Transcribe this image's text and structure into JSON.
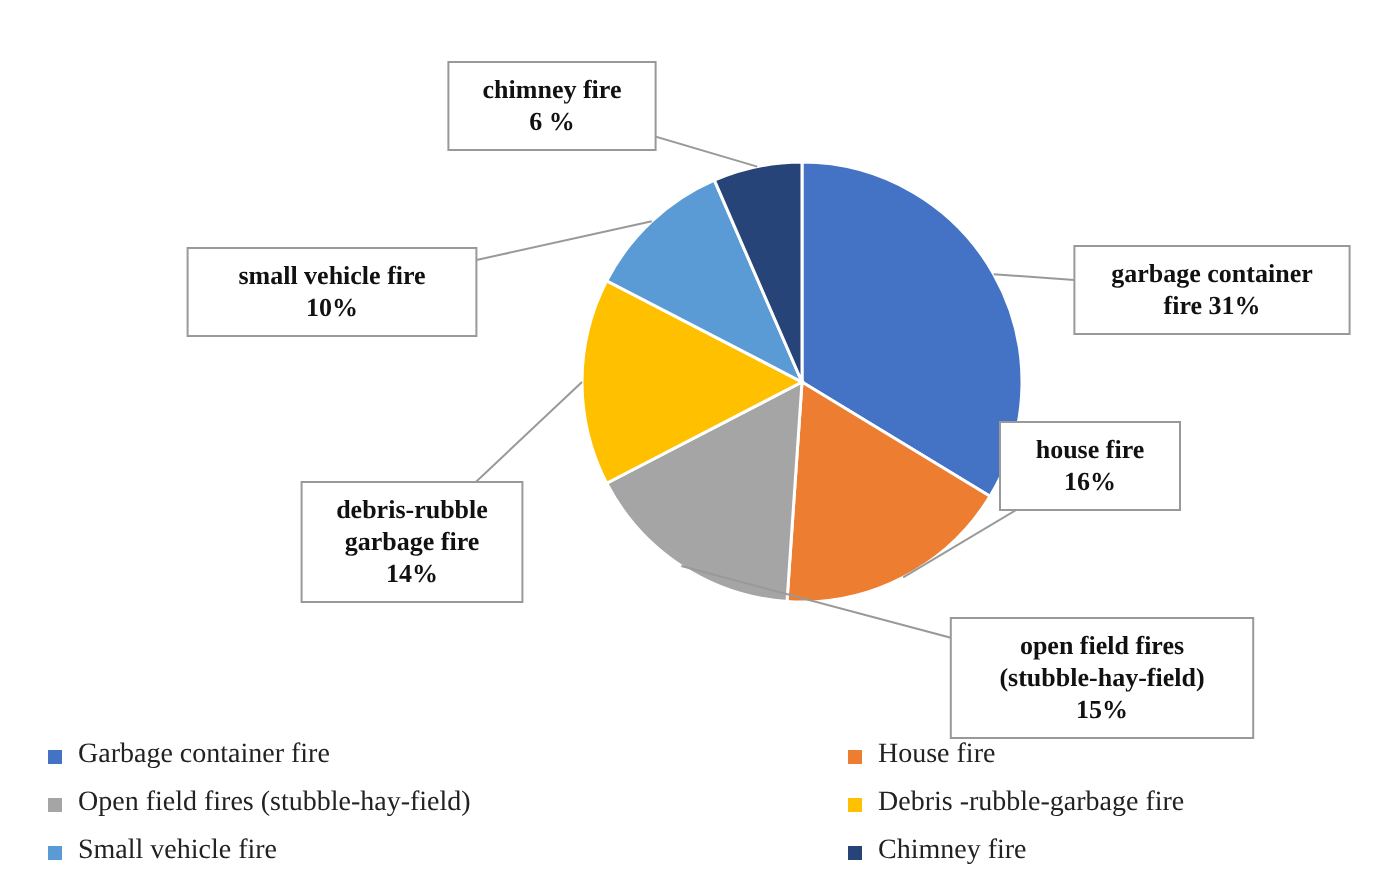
{
  "chart_data": {
    "type": "pie",
    "categories": [
      "Garbage container fire",
      "House fire",
      "Open field fires (stubble-hay-field)",
      "Debris -rubble-garbage fire",
      "Small vehicle fire",
      "Chimney fire"
    ],
    "values": [
      31,
      16,
      15,
      14,
      10,
      6
    ],
    "colors": [
      "#4472c4",
      "#ed7d31",
      "#a5a5a5",
      "#ffc000",
      "#5b9bd5",
      "#264478"
    ],
    "value_labels": [
      "garbage container fire 31%",
      "house fire 16%",
      "open field fires (stubble-hay-field) 15%",
      "debris-rubble garbage fire 14%",
      "small vehicle fire 10%",
      "chimney fire 6 %"
    ],
    "legend": "bottom"
  }
}
